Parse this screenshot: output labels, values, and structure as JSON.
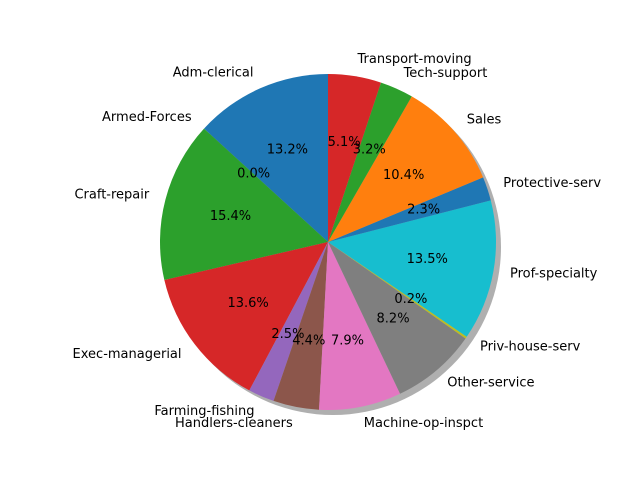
{
  "chart_data": {
    "type": "pie",
    "title": "",
    "shadow": true,
    "start_angle_deg": 90,
    "direction": "counterclockwise",
    "slices": [
      {
        "label": "Adm-clerical",
        "value": 13.2,
        "pct_label": "13.2%",
        "color": "#1f77b4"
      },
      {
        "label": "Armed-Forces",
        "value": 0.0,
        "pct_label": "0.0%",
        "color": "#ff7f0e"
      },
      {
        "label": "Craft-repair",
        "value": 15.4,
        "pct_label": "15.4%",
        "color": "#2ca02c"
      },
      {
        "label": "Exec-managerial",
        "value": 13.6,
        "pct_label": "13.6%",
        "color": "#d62728"
      },
      {
        "label": "Farming-fishing",
        "value": 2.5,
        "pct_label": "2.5%",
        "color": "#9467bd"
      },
      {
        "label": "Handlers-cleaners",
        "value": 4.4,
        "pct_label": "4.4%",
        "color": "#8c564b"
      },
      {
        "label": "Machine-op-inspct",
        "value": 7.9,
        "pct_label": "7.9%",
        "color": "#e377c2"
      },
      {
        "label": "Other-service",
        "value": 8.2,
        "pct_label": "8.2%",
        "color": "#7f7f7f"
      },
      {
        "label": "Priv-house-serv",
        "value": 0.2,
        "pct_label": "0.2%",
        "color": "#bcbd22"
      },
      {
        "label": "Prof-specialty",
        "value": 13.5,
        "pct_label": "13.5%",
        "color": "#17becf"
      },
      {
        "label": "Protective-serv",
        "value": 2.3,
        "pct_label": "2.3%",
        "color": "#1f77b4"
      },
      {
        "label": "Sales",
        "value": 10.4,
        "pct_label": "10.4%",
        "color": "#ff7f0e"
      },
      {
        "label": "Tech-support",
        "value": 3.2,
        "pct_label": "3.2%",
        "color": "#2ca02c"
      },
      {
        "label": "Transport-moving",
        "value": 5.1,
        "pct_label": "5.1%",
        "color": "#d62728"
      }
    ]
  }
}
